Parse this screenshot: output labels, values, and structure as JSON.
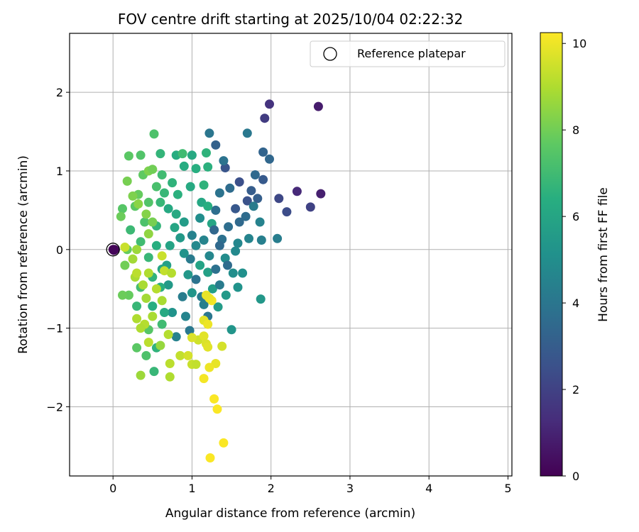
{
  "chart_data": {
    "type": "scatter",
    "title": "FOV centre drift starting at 2025/10/04 02:22:32",
    "xlabel": "Angular distance from reference (arcmin)",
    "ylabel": "Rotation from reference (arcmin)",
    "xlim": [
      -0.55,
      5.05
    ],
    "ylim": [
      -2.88,
      2.75
    ],
    "xticks": [
      0,
      1,
      2,
      3,
      4,
      5
    ],
    "yticks": [
      -2,
      -1,
      0,
      1,
      2
    ],
    "xtick_labels": [
      "0",
      "1",
      "2",
      "3",
      "4",
      "5"
    ],
    "ytick_labels": [
      "−2",
      "−1",
      "0",
      "1",
      "2"
    ],
    "grid": true,
    "legend": {
      "placement": "top-right",
      "entries": [
        "Reference platepar"
      ]
    },
    "reference_point": {
      "x": 0,
      "y": 0,
      "label": "Reference platepar"
    },
    "colorbar": {
      "label": "Hours from first FF file",
      "range": [
        0,
        10.25
      ],
      "ticks": [
        0,
        2,
        4,
        6,
        8,
        10
      ],
      "tick_labels": [
        "0",
        "2",
        "4",
        "6",
        "8",
        "10"
      ],
      "colormap": "viridis"
    },
    "points": [
      [
        0.0,
        0.0,
        0.05
      ],
      [
        0.01,
        -0.01,
        0.1
      ],
      [
        0.02,
        0.0,
        0.15
      ],
      [
        2.6,
        1.82,
        0.8
      ],
      [
        2.63,
        0.71,
        0.9
      ],
      [
        2.33,
        0.74,
        1.2
      ],
      [
        1.98,
        1.85,
        1.5
      ],
      [
        1.92,
        1.67,
        1.8
      ],
      [
        2.5,
        0.54,
        2.0
      ],
      [
        2.1,
        0.65,
        2.2
      ],
      [
        2.2,
        0.48,
        2.4
      ],
      [
        1.6,
        0.86,
        2.5
      ],
      [
        1.7,
        0.62,
        2.6
      ],
      [
        1.42,
        1.04,
        2.7
      ],
      [
        1.55,
        0.52,
        2.8
      ],
      [
        1.9,
        0.89,
        2.9
      ],
      [
        1.75,
        0.75,
        3.0
      ],
      [
        1.83,
        0.65,
        3.1
      ],
      [
        1.3,
        1.33,
        3.2
      ],
      [
        1.9,
        1.24,
        3.3
      ],
      [
        1.98,
        1.15,
        3.4
      ],
      [
        1.8,
        0.95,
        3.5
      ],
      [
        1.68,
        0.42,
        3.6
      ],
      [
        1.46,
        0.29,
        3.7
      ],
      [
        1.38,
        0.13,
        3.8
      ],
      [
        1.4,
        1.13,
        3.9
      ],
      [
        1.22,
        1.48,
        4.0
      ],
      [
        1.7,
        1.48,
        4.1
      ],
      [
        1.78,
        0.55,
        4.2
      ],
      [
        2.08,
        0.14,
        4.3
      ],
      [
        1.88,
        0.12,
        4.4
      ],
      [
        1.86,
        0.35,
        4.5
      ],
      [
        1.72,
        0.14,
        4.6
      ],
      [
        1.58,
        0.08,
        4.7
      ],
      [
        1.55,
        -0.02,
        4.8
      ],
      [
        1.42,
        -0.11,
        4.9
      ],
      [
        1.52,
        -0.3,
        5.0
      ],
      [
        1.64,
        -0.3,
        5.1
      ],
      [
        1.58,
        -0.48,
        5.2
      ],
      [
        1.5,
        -1.02,
        5.3
      ],
      [
        1.87,
        -0.63,
        5.4
      ],
      [
        1.43,
        -0.58,
        5.5
      ],
      [
        1.33,
        -0.73,
        5.6
      ],
      [
        1.26,
        -0.5,
        5.7
      ],
      [
        1.2,
        -0.29,
        5.8
      ],
      [
        1.1,
        -0.2,
        5.9
      ],
      [
        1.25,
        0.33,
        6.0
      ],
      [
        1.12,
        0.6,
        6.1
      ],
      [
        0.98,
        0.8,
        6.2
      ],
      [
        0.9,
        1.06,
        6.3
      ],
      [
        1.05,
        1.03,
        6.4
      ],
      [
        1.2,
        1.05,
        6.5
      ],
      [
        1.18,
        1.23,
        6.6
      ],
      [
        1.0,
        0.18,
        4.5
      ],
      [
        0.98,
        -0.12,
        4.2
      ],
      [
        1.05,
        -0.38,
        3.9
      ],
      [
        0.88,
        -0.6,
        4.3
      ],
      [
        0.92,
        -0.85,
        4.6
      ],
      [
        0.97,
        -1.03,
        4.1
      ],
      [
        0.8,
        -1.11,
        4.5
      ],
      [
        0.75,
        -0.8,
        5.2
      ],
      [
        0.7,
        -0.45,
        5.5
      ],
      [
        0.68,
        -0.2,
        5.8
      ],
      [
        0.72,
        0.05,
        5.9
      ],
      [
        0.78,
        0.28,
        6.0
      ],
      [
        0.8,
        0.45,
        6.2
      ],
      [
        0.82,
        0.7,
        6.5
      ],
      [
        0.75,
        0.85,
        6.6
      ],
      [
        0.6,
        0.6,
        6.8
      ],
      [
        0.55,
        0.3,
        6.7
      ],
      [
        0.55,
        0.05,
        6.4
      ],
      [
        0.62,
        -0.25,
        6.0
      ],
      [
        0.6,
        -0.48,
        6.4
      ],
      [
        0.65,
        -0.8,
        6.2
      ],
      [
        1.12,
        -0.6,
        4.2
      ],
      [
        1.2,
        -0.85,
        4.0
      ],
      [
        1.15,
        -0.7,
        4.4
      ],
      [
        1.35,
        -0.45,
        4.2
      ],
      [
        1.3,
        -0.25,
        3.8
      ],
      [
        1.45,
        -0.2,
        3.6
      ],
      [
        1.35,
        0.05,
        3.5
      ],
      [
        1.28,
        0.25,
        3.4
      ],
      [
        1.3,
        0.5,
        3.7
      ],
      [
        1.35,
        0.72,
        3.9
      ],
      [
        1.48,
        0.78,
        3.6
      ],
      [
        1.6,
        0.35,
        3.5
      ],
      [
        1.15,
        0.82,
        6.6
      ],
      [
        1.2,
        0.55,
        6.4
      ],
      [
        1.1,
        0.4,
        5.0
      ],
      [
        1.05,
        0.05,
        4.8
      ],
      [
        1.15,
        0.12,
        4.6
      ],
      [
        1.22,
        -0.08,
        4.7
      ],
      [
        1.0,
        -0.55,
        5.3
      ],
      [
        0.95,
        -0.32,
        5.4
      ],
      [
        0.9,
        -0.05,
        5.2
      ],
      [
        0.85,
        0.15,
        5.5
      ],
      [
        0.9,
        0.35,
        5.6
      ],
      [
        0.7,
        0.52,
        6.2
      ],
      [
        0.65,
        0.72,
        6.8
      ],
      [
        0.62,
        0.95,
        7.0
      ],
      [
        0.55,
        0.8,
        7.2
      ],
      [
        0.45,
        0.6,
        7.4
      ],
      [
        0.4,
        0.35,
        7.3
      ],
      [
        0.35,
        0.1,
        7.0
      ],
      [
        0.45,
        -0.1,
        6.8
      ],
      [
        0.5,
        -0.35,
        6.6
      ],
      [
        0.35,
        -0.48,
        7.1
      ],
      [
        0.3,
        -0.72,
        6.8
      ],
      [
        0.5,
        -0.72,
        6.4
      ],
      [
        0.62,
        -0.95,
        7.0
      ],
      [
        0.45,
        -1.02,
        7.5
      ],
      [
        0.42,
        -1.35,
        7.3
      ],
      [
        0.52,
        -1.55,
        6.8
      ],
      [
        0.55,
        -1.25,
        6.6
      ],
      [
        0.3,
        -1.25,
        7.6
      ],
      [
        0.2,
        -0.58,
        7.8
      ],
      [
        0.12,
        -0.58,
        7.9
      ],
      [
        0.15,
        -0.2,
        8.0
      ],
      [
        0.18,
        0.0,
        7.8
      ],
      [
        0.22,
        0.25,
        6.9
      ],
      [
        0.12,
        0.52,
        7.5
      ],
      [
        0.1,
        0.42,
        7.9
      ],
      [
        0.28,
        0.55,
        7.6
      ],
      [
        0.32,
        0.7,
        7.8
      ],
      [
        0.38,
        0.95,
        7.7
      ],
      [
        0.45,
        1.0,
        8.2
      ],
      [
        0.5,
        1.02,
        8.0
      ],
      [
        0.35,
        1.2,
        7.4
      ],
      [
        0.2,
        1.19,
        7.6
      ],
      [
        0.52,
        1.47,
        7.3
      ],
      [
        0.6,
        1.22,
        6.7
      ],
      [
        0.8,
        1.2,
        6.3
      ],
      [
        0.88,
        1.22,
        7.0
      ],
      [
        1.0,
        1.2,
        6.2
      ],
      [
        0.18,
        0.87,
        8.1
      ],
      [
        0.25,
        0.68,
        8.2
      ],
      [
        0.32,
        0.58,
        8.4
      ],
      [
        0.42,
        0.45,
        8.3
      ],
      [
        0.5,
        0.35,
        8.1
      ],
      [
        0.45,
        0.2,
        8.5
      ],
      [
        0.3,
        0.0,
        8.7
      ],
      [
        0.25,
        -0.12,
        8.8
      ],
      [
        0.28,
        -0.35,
        8.9
      ],
      [
        0.38,
        -0.45,
        8.9
      ],
      [
        0.42,
        -0.62,
        8.8
      ],
      [
        0.5,
        -0.85,
        8.9
      ],
      [
        0.4,
        -0.95,
        9.1
      ],
      [
        0.35,
        -1.0,
        9.0
      ],
      [
        0.45,
        -1.18,
        9.2
      ],
      [
        0.6,
        -1.22,
        8.6
      ],
      [
        0.7,
        -1.08,
        9.1
      ],
      [
        0.72,
        -1.45,
        9.2
      ],
      [
        0.72,
        -1.62,
        9.0
      ],
      [
        0.35,
        -1.6,
        8.7
      ],
      [
        0.3,
        -0.88,
        9.0
      ],
      [
        0.3,
        -0.3,
        9.2
      ],
      [
        0.45,
        -0.3,
        9.0
      ],
      [
        0.55,
        -0.5,
        9.1
      ],
      [
        0.62,
        -0.65,
        8.9
      ],
      [
        0.65,
        -0.27,
        9.3
      ],
      [
        0.74,
        -0.3,
        9.1
      ],
      [
        0.62,
        -0.08,
        9.4
      ],
      [
        0.15,
        0.03,
        9.4
      ],
      [
        0.85,
        -1.35,
        9.3
      ],
      [
        0.95,
        -1.35,
        9.6
      ],
      [
        1.0,
        -1.46,
        9.4
      ],
      [
        1.05,
        -1.46,
        9.3
      ],
      [
        1.08,
        -1.15,
        9.5
      ],
      [
        1.0,
        -1.12,
        9.7
      ],
      [
        1.15,
        -1.1,
        9.8
      ],
      [
        1.18,
        -1.2,
        9.7
      ],
      [
        1.2,
        -1.24,
        9.8
      ],
      [
        1.15,
        -0.9,
        9.8
      ],
      [
        1.2,
        -0.95,
        10.0
      ],
      [
        1.25,
        -0.65,
        10.1
      ],
      [
        1.22,
        -0.62,
        10.0
      ],
      [
        1.18,
        -0.58,
        9.9
      ],
      [
        1.38,
        -1.23,
        9.6
      ],
      [
        1.3,
        -1.45,
        9.9
      ],
      [
        1.22,
        -1.5,
        10.0
      ],
      [
        1.15,
        -1.64,
        10.1
      ],
      [
        1.28,
        -1.9,
        10.2
      ],
      [
        1.32,
        -2.03,
        10.2
      ],
      [
        1.4,
        -2.46,
        10.2
      ],
      [
        1.23,
        -2.65,
        10.2
      ]
    ]
  }
}
